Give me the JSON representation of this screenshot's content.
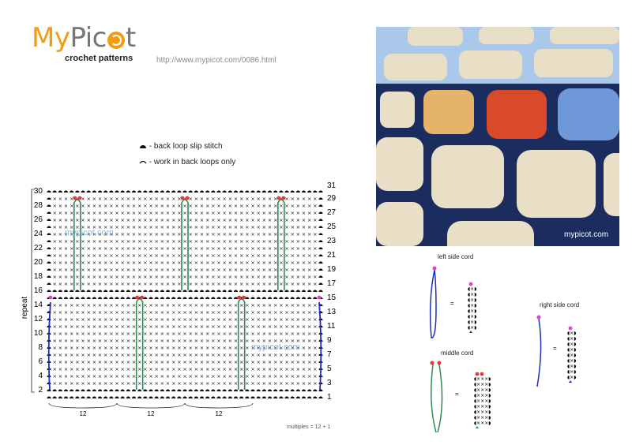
{
  "logo": {
    "name_part1": "My",
    "name_part2": "Pic",
    "name_part3": "t",
    "subtitle": "crochet patterns",
    "brand_orange": "#f39c12",
    "brand_gray": "#777777"
  },
  "url": "http://www.mypicot.com/0086.html",
  "legend": [
    {
      "symbol": "slip-stitch-bl-icon",
      "label": "back loop slip stitch"
    },
    {
      "symbol": "back-loop-arc-icon",
      "label": "work in back loops only"
    }
  ],
  "chart": {
    "side_label": "repeat",
    "left_row_numbers": [
      "30",
      "28",
      "26",
      "24",
      "22",
      "20",
      "18",
      "16",
      "14",
      "12",
      "10",
      "8",
      "6",
      "4",
      "2"
    ],
    "right_row_numbers": [
      "31",
      "29",
      "27",
      "25",
      "23",
      "21",
      "19",
      "17",
      "15",
      "13",
      "11",
      "9",
      "7",
      "5",
      "3",
      "1"
    ],
    "bottom_repeat_labels": [
      "12",
      "12",
      "12"
    ],
    "watermark": "mypicot.com",
    "multiples_note": "multiples = 12 + 1",
    "colors": {
      "stitch": "#111111",
      "cord_green": "#2e8b57",
      "cord_blue": "#1f2fb8",
      "slip_red": "#e03a3a",
      "slip_magenta": "#e040d0"
    }
  },
  "photo": {
    "caption": "mypicot.com"
  },
  "cords": [
    {
      "title": "left side cord",
      "equals": "="
    },
    {
      "title": "middle cord",
      "equals": "="
    },
    {
      "title": "right side cord",
      "equals": "="
    }
  ]
}
